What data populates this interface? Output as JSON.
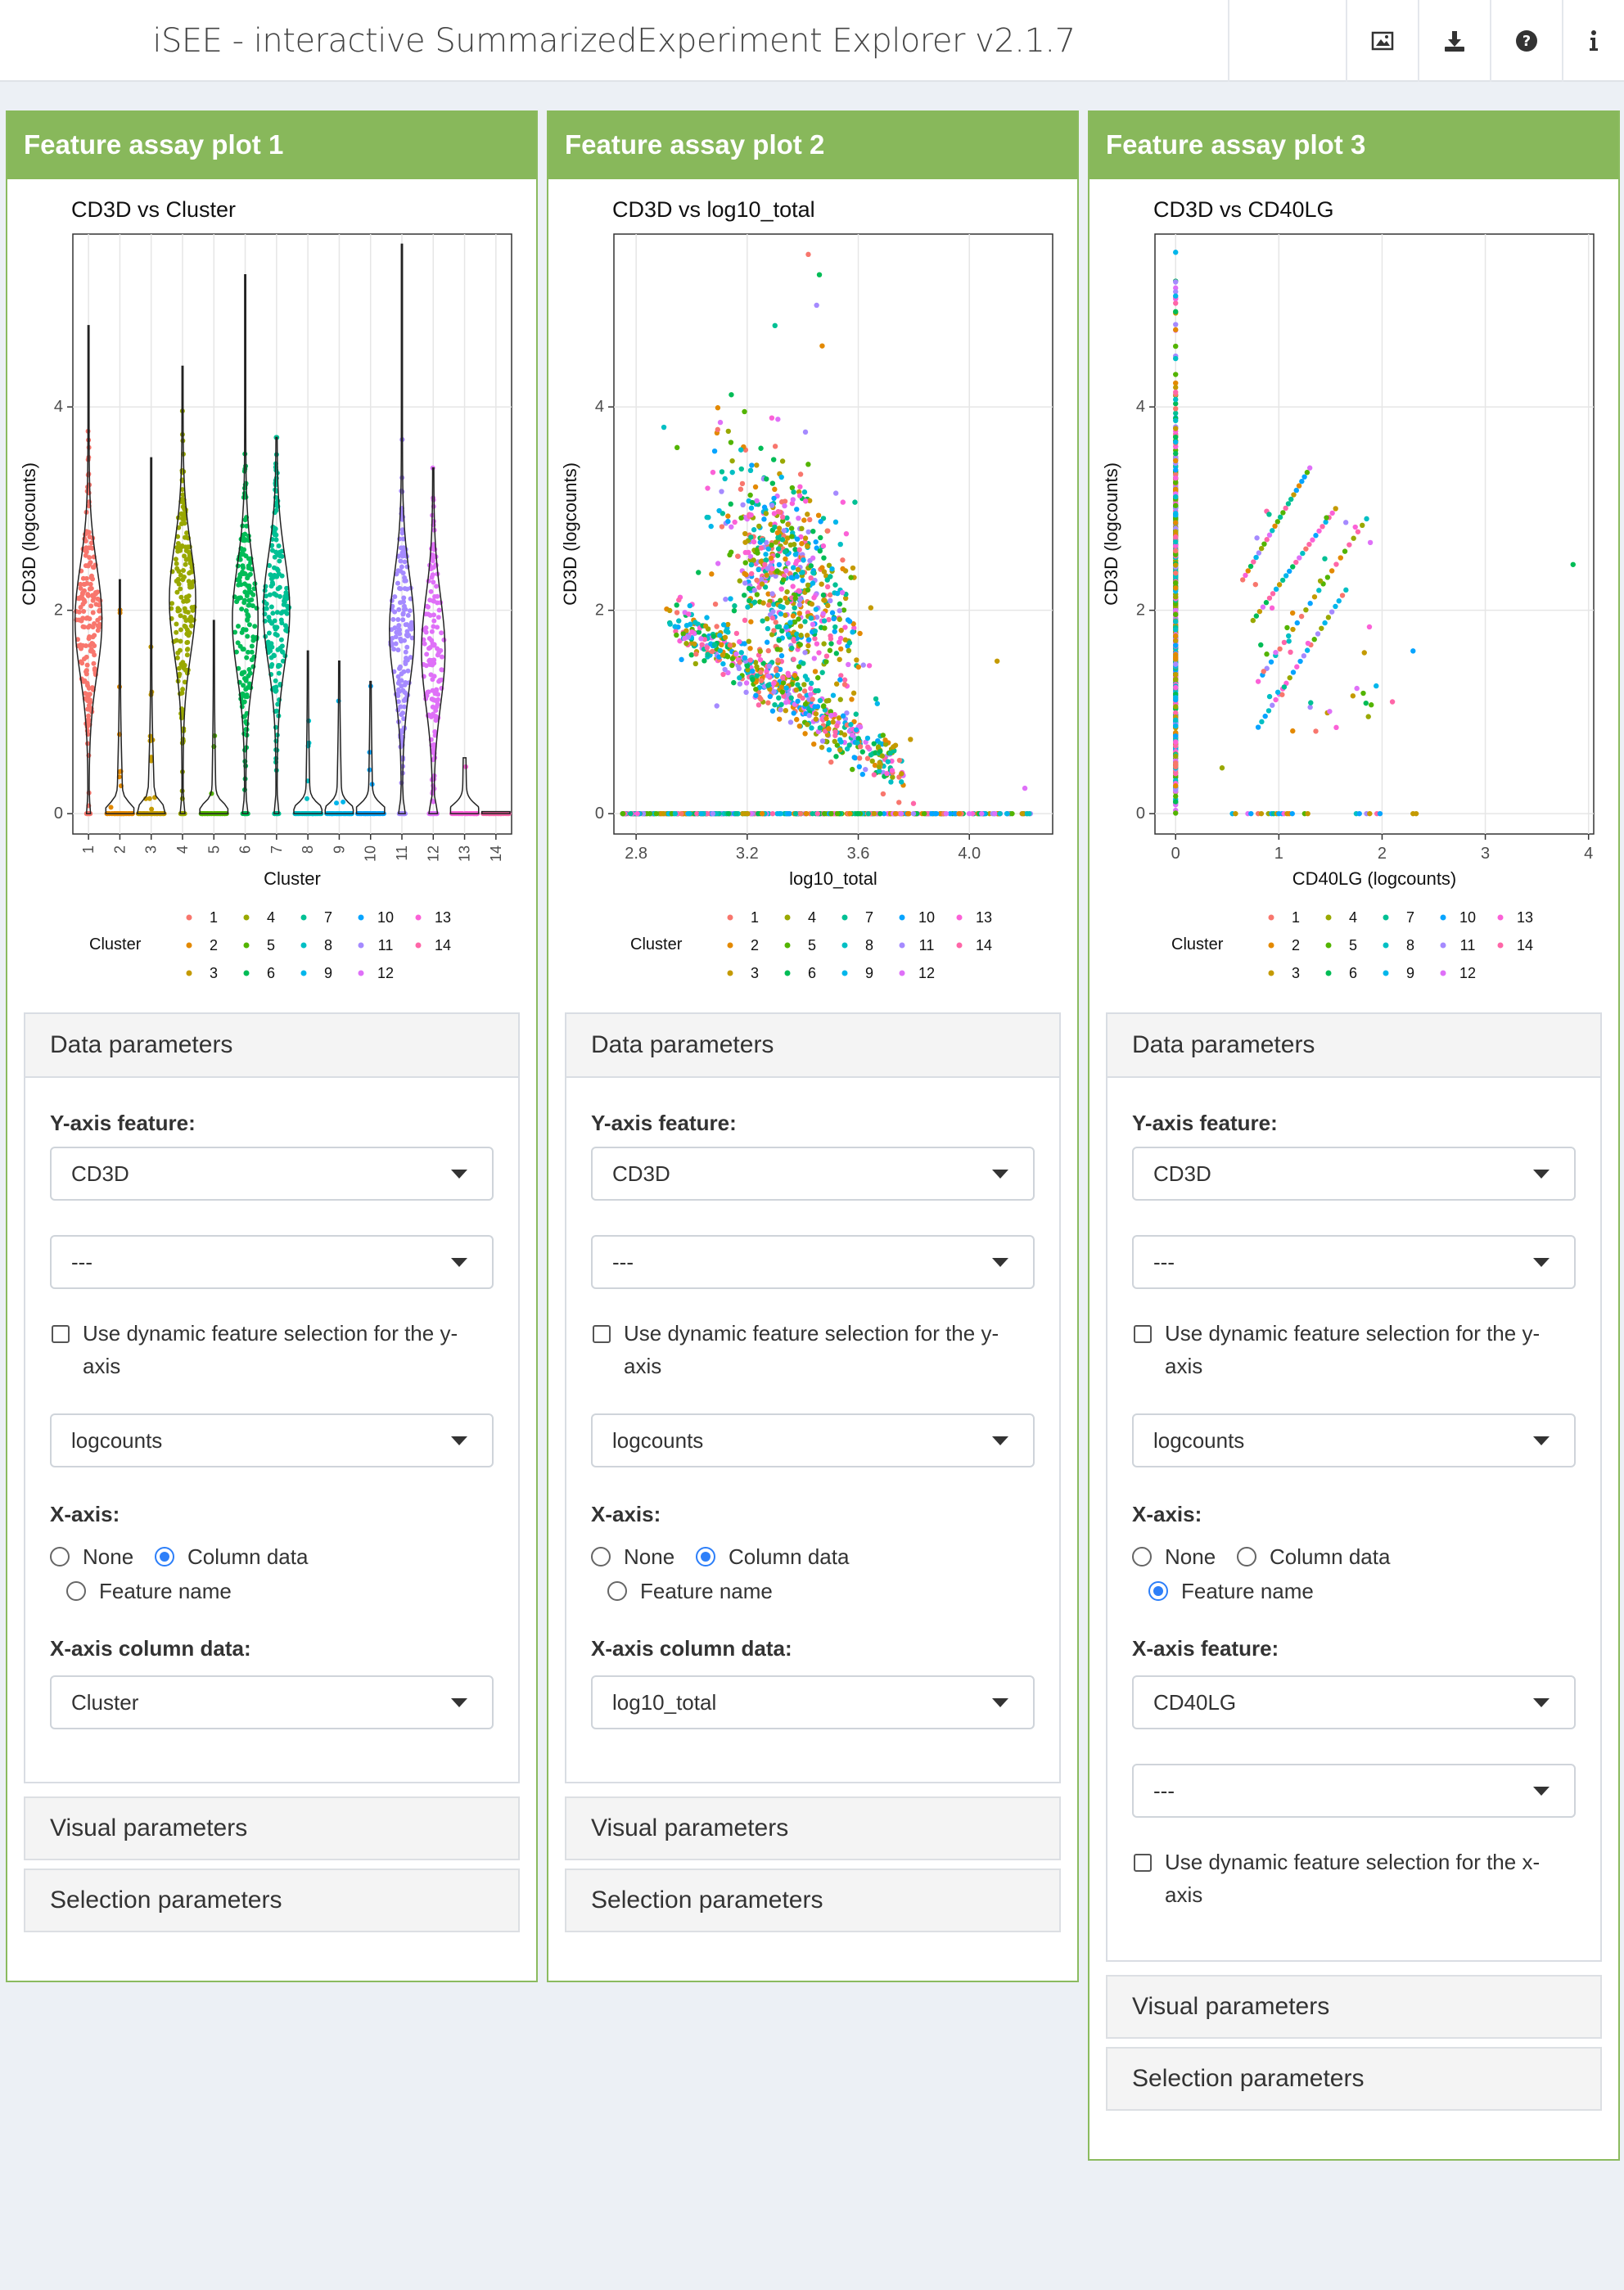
{
  "app": {
    "title": "iSEE - interactive SummarizedExperiment Explorer v2.1.7",
    "header_icons": [
      "image-icon",
      "download-icon",
      "question-icon",
      "info-icon"
    ]
  },
  "colors": {
    "panel_header": "#88b85b",
    "cluster_palette": [
      "#F8766D",
      "#E38900",
      "#C49A00",
      "#99A800",
      "#53B400",
      "#00BC56",
      "#00C094",
      "#00BFC4",
      "#00B6EB",
      "#06A4FF",
      "#A58AFF",
      "#DF70F8",
      "#FB61D7",
      "#FF66A8"
    ]
  },
  "panels": [
    {
      "title": "Feature assay plot 1",
      "plot_title": "CD3D vs Cluster",
      "data_params_title": "Data parameters",
      "y_feature_label": "Y-axis feature:",
      "y_feature_value": "CD3D",
      "y_secondary_value": "---",
      "dynamic_y_label": "Use dynamic feature selection for the y-axis",
      "dynamic_y_label_line1": "Use dynamic feature selection for the y-",
      "dynamic_y_label_line2": "axis",
      "assay_value": "logcounts",
      "x_axis_label": "X-axis:",
      "x_options": [
        "None",
        "Column data",
        "Feature name"
      ],
      "x_selected": "Column data",
      "x_detail_label": "X-axis column data:",
      "x_detail_value": "Cluster",
      "visual_params": "Visual parameters",
      "selection_params": "Selection parameters"
    },
    {
      "title": "Feature assay plot 2",
      "plot_title": "CD3D vs log10_total",
      "data_params_title": "Data parameters",
      "y_feature_label": "Y-axis feature:",
      "y_feature_value": "CD3D",
      "y_secondary_value": "---",
      "dynamic_y_label_line1": "Use dynamic feature selection for the y-",
      "dynamic_y_label_line2": "axis",
      "assay_value": "logcounts",
      "x_axis_label": "X-axis:",
      "x_options": [
        "None",
        "Column data",
        "Feature name"
      ],
      "x_selected": "Column data",
      "x_detail_label": "X-axis column data:",
      "x_detail_value": "log10_total",
      "visual_params": "Visual parameters",
      "selection_params": "Selection parameters"
    },
    {
      "title": "Feature assay plot 3",
      "plot_title": "CD3D vs CD40LG",
      "data_params_title": "Data parameters",
      "y_feature_label": "Y-axis feature:",
      "y_feature_value": "CD3D",
      "y_secondary_value": "---",
      "dynamic_y_label_line1": "Use dynamic feature selection for the y-",
      "dynamic_y_label_line2": "axis",
      "assay_value": "logcounts",
      "x_axis_label": "X-axis:",
      "x_options": [
        "None",
        "Column data",
        "Feature name"
      ],
      "x_selected": "Feature name",
      "x_detail_label": "X-axis feature:",
      "x_detail_value": "CD40LG",
      "x_secondary_value": "---",
      "dynamic_x_label_line1": "Use dynamic feature selection for the x-",
      "dynamic_x_label_line2": "axis",
      "visual_params": "Visual parameters",
      "selection_params": "Selection parameters"
    }
  ],
  "chart_data": [
    {
      "type": "violin",
      "title": "CD3D vs Cluster",
      "xlabel": "Cluster",
      "ylabel": "CD3D (logcounts)",
      "categories": [
        "1",
        "2",
        "3",
        "4",
        "5",
        "6",
        "7",
        "8",
        "9",
        "10",
        "11",
        "12",
        "13",
        "14"
      ],
      "yticks": [
        0,
        2,
        4
      ],
      "ylim": [
        -0.2,
        5.7
      ],
      "max_values": [
        4.8,
        2.3,
        3.5,
        4.4,
        1.9,
        5.3,
        3.7,
        1.6,
        1.5,
        1.3,
        5.6,
        3.4,
        0.55,
        0.02
      ],
      "median_values": [
        1.9,
        0.0,
        0.0,
        2.1,
        0.0,
        1.9,
        2.0,
        0.0,
        0.0,
        0.0,
        1.8,
        1.6,
        0.0,
        0.0
      ],
      "nonzero_fraction": [
        0.92,
        0.15,
        0.18,
        0.9,
        0.1,
        0.88,
        0.9,
        0.1,
        0.12,
        0.1,
        0.85,
        0.8,
        0.1,
        0.0
      ],
      "legend_title": "Cluster",
      "legend_entries": [
        "1",
        "2",
        "3",
        "4",
        "5",
        "6",
        "7",
        "8",
        "9",
        "10",
        "11",
        "12",
        "13",
        "14"
      ],
      "legend_position": "bottom"
    },
    {
      "type": "scatter",
      "title": "CD3D vs log10_total",
      "xlabel": "log10_total",
      "ylabel": "CD3D (logcounts)",
      "xticks": [
        2.8,
        3.2,
        3.6,
        4.0
      ],
      "yticks": [
        0,
        2,
        4
      ],
      "xlim": [
        2.72,
        4.3
      ],
      "ylim": [
        -0.2,
        5.7
      ],
      "point_cloud": {
        "zero_row_x_range": [
          2.75,
          4.22
        ],
        "band_trend": {
          "x_start": 2.95,
          "y_start": 1.9,
          "x_end": 3.75,
          "y_end": 0.4
        },
        "upper_cluster_center": {
          "x": 3.35,
          "y": 2.3
        },
        "outliers": [
          [
            3.42,
            5.5
          ],
          [
            3.46,
            5.3
          ],
          [
            3.45,
            5.0
          ],
          [
            3.47,
            4.6
          ],
          [
            3.3,
            4.8
          ],
          [
            4.2,
            0.25
          ],
          [
            4.1,
            1.5
          ],
          [
            2.9,
            3.8
          ]
        ]
      },
      "legend_title": "Cluster",
      "legend_entries": [
        "1",
        "2",
        "3",
        "4",
        "5",
        "6",
        "7",
        "8",
        "9",
        "10",
        "11",
        "12",
        "13",
        "14"
      ],
      "legend_position": "bottom"
    },
    {
      "type": "scatter",
      "title": "CD3D vs CD40LG",
      "xlabel": "CD40LG (logcounts)",
      "ylabel": "CD3D (logcounts)",
      "xticks": [
        0,
        1,
        2,
        3,
        4
      ],
      "yticks": [
        0,
        2,
        4
      ],
      "xlim": [
        -0.2,
        4.05
      ],
      "ylim": [
        -0.2,
        5.7
      ],
      "point_cloud": {
        "zero_column_y_range": [
          0.2,
          5.6
        ],
        "zero_row_x_values": [
          0.55,
          0.7,
          0.8,
          0.9,
          0.95,
          1.0,
          1.05,
          1.1,
          1.25,
          1.75,
          1.85,
          1.95,
          2.3
        ],
        "diagonal_lines": [
          {
            "x_start": 0.8,
            "y_start": 0.85,
            "x_end": 1.65,
            "y_end": 2.2
          },
          {
            "x_start": 0.8,
            "y_start": 1.3,
            "x_end": 1.85,
            "y_end": 2.9
          },
          {
            "x_start": 0.75,
            "y_start": 1.9,
            "x_end": 1.55,
            "y_end": 3.0
          },
          {
            "x_start": 0.65,
            "y_start": 2.3,
            "x_end": 1.3,
            "y_end": 3.4
          }
        ],
        "outliers": [
          [
            3.85,
            2.45
          ],
          [
            2.3,
            1.6
          ],
          [
            2.1,
            1.1
          ],
          [
            0.45,
            0.45
          ]
        ]
      },
      "legend_title": "Cluster",
      "legend_entries": [
        "1",
        "2",
        "3",
        "4",
        "5",
        "6",
        "7",
        "8",
        "9",
        "10",
        "11",
        "12",
        "13",
        "14"
      ],
      "legend_position": "bottom"
    }
  ]
}
